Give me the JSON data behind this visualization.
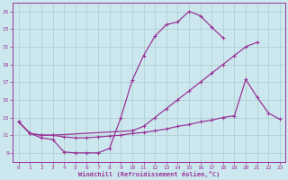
{
  "bg_color": "#cce8ee",
  "line_color": "#993399",
  "grid_color": "#aacccc",
  "xlabel": "Windchill (Refroidissement éolien,°C)",
  "xlim": [
    -0.5,
    23.5
  ],
  "ylim": [
    8.0,
    26.0
  ],
  "yticks": [
    9,
    11,
    13,
    15,
    17,
    19,
    21,
    23,
    25
  ],
  "xticks": [
    0,
    1,
    2,
    3,
    4,
    5,
    6,
    7,
    8,
    9,
    10,
    11,
    12,
    13,
    14,
    15,
    16,
    17,
    18,
    19,
    20,
    21,
    22,
    23
  ],
  "curve1_x": [
    0,
    1,
    2,
    3,
    4,
    5,
    6,
    7,
    8,
    9,
    10,
    11,
    12,
    13,
    14,
    15,
    16,
    17,
    18
  ],
  "curve1_y": [
    12.5,
    11.2,
    10.7,
    10.5,
    9.1,
    9.0,
    9.0,
    9.0,
    9.5,
    13.0,
    17.2,
    20.0,
    22.2,
    23.5,
    23.8,
    25.0,
    24.5,
    23.2,
    22.0
  ],
  "curve2_x": [
    0,
    1,
    2,
    3,
    10,
    11,
    12,
    13,
    14,
    15,
    16,
    17,
    18,
    19,
    20,
    21
  ],
  "curve2_y": [
    12.5,
    11.2,
    11.0,
    11.0,
    11.5,
    12.0,
    13.0,
    14.0,
    15.0,
    16.0,
    17.0,
    18.0,
    19.0,
    20.0,
    21.0,
    21.5
  ],
  "curve3_x": [
    0,
    1,
    2,
    3,
    4,
    5,
    6,
    7,
    8,
    9,
    10,
    11,
    12,
    13,
    14,
    15,
    16,
    17,
    18,
    19,
    20,
    21,
    22,
    23
  ],
  "curve3_y": [
    12.5,
    11.2,
    11.0,
    11.0,
    10.8,
    10.7,
    10.7,
    10.8,
    10.9,
    11.0,
    11.2,
    11.3,
    11.5,
    11.7,
    12.0,
    12.2,
    12.5,
    12.7,
    13.0,
    13.2,
    17.3,
    15.3,
    13.5,
    12.8
  ]
}
